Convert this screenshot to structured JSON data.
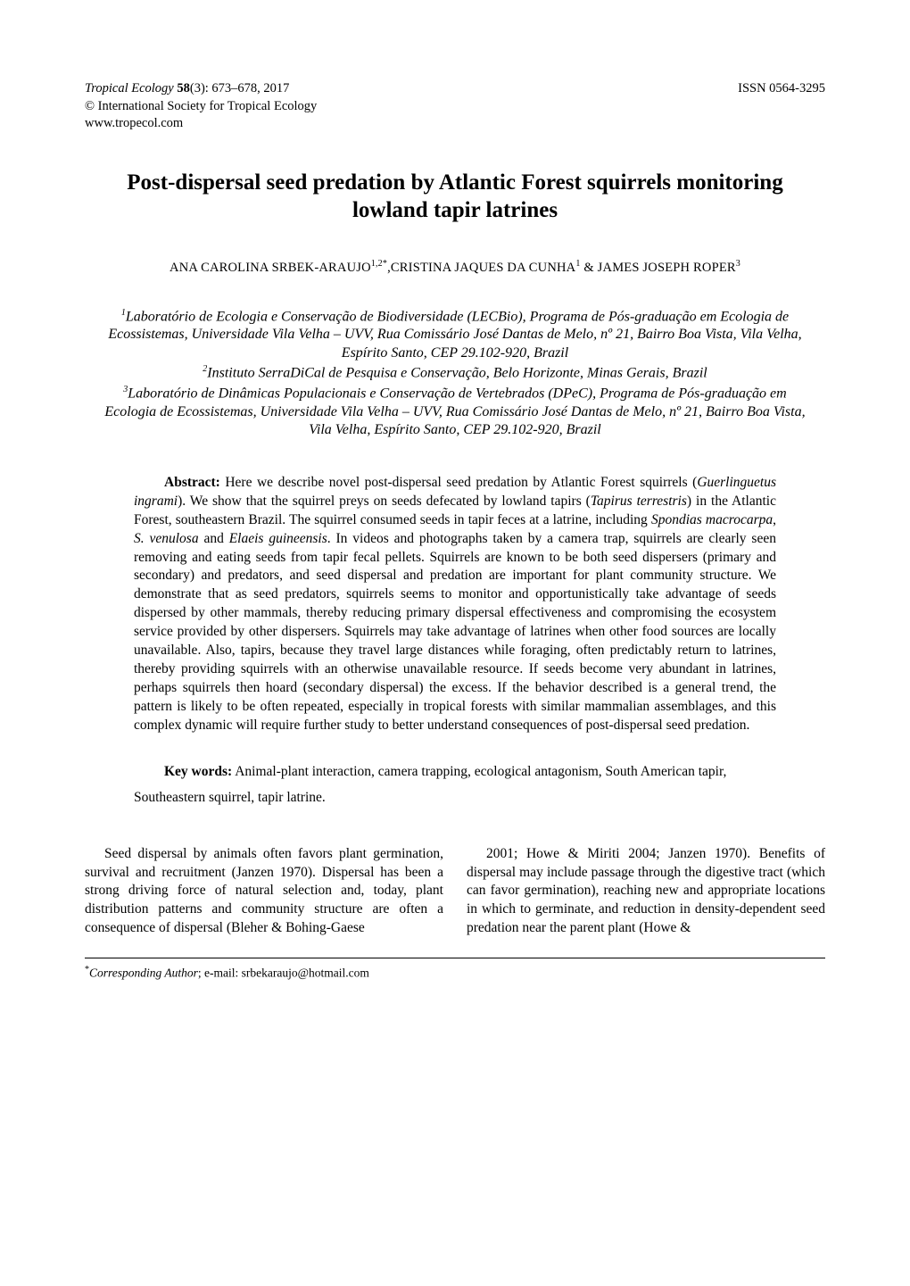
{
  "header": {
    "journal_name": "Tropical Ecology",
    "volume_issue": "58",
    "issue_pages": "(3): 673–678, 2017",
    "copyright": "© International Society for Tropical Ecology",
    "website": "www.tropecol.com",
    "issn": "ISSN 0564-3295"
  },
  "title": "Post-dispersal seed predation by Atlantic Forest squirrels monitoring lowland tapir latrines",
  "authors": "ANA CAROLINA SRBEK-ARAUJO",
  "authors_sup1": "1,2*",
  "authors_mid": ",CRISTINA JAQUES DA CUNHA",
  "authors_sup2": "1",
  "authors_mid2": " & JAMES JOSEPH ROPER",
  "authors_sup3": "3",
  "affiliations": {
    "a1_sup": "1",
    "a1": "Laboratório de Ecologia e Conservação de Biodiversidade (LECBio), Programa de Pós-graduação em Ecologia de Ecossistemas, Universidade Vila Velha – UVV, Rua Comissário José Dantas de Melo, nº 21, Bairro Boa Vista, Vila Velha, Espírito Santo, CEP 29.102-920, Brazil",
    "a2_sup": "2",
    "a2": "Instituto SerraDiCal de Pesquisa e Conservação, Belo Horizonte, Minas Gerais, Brazil",
    "a3_sup": "3",
    "a3": "Laboratório de Dinâmicas Populacionais e Conservação de Vertebrados (DPeC), Programa de Pós-graduação em Ecologia de Ecossistemas, Universidade Vila Velha – UVV, Rua Comissário José Dantas de Melo, nº 21, Bairro Boa Vista, Vila Velha, Espírito Santo, CEP 29.102-920, Brazil"
  },
  "abstract": {
    "label": "Abstract: ",
    "text_a": "Here we describe novel post-dispersal seed predation by Atlantic Forest squirrels (",
    "sp1": "Guerlinguetus ingrami",
    "text_b": "). We show that the squirrel preys on seeds defecated by lowland tapirs (",
    "sp2": "Tapirus terrestris",
    "text_c": ") in the Atlantic Forest, southeastern Brazil. The squirrel consumed seeds in tapir feces at a latrine, including ",
    "sp3": "Spondias macrocarpa",
    "text_d": ", ",
    "sp4": "S. venulosa",
    "text_e": " and ",
    "sp5": "Elaeis guineensis",
    "text_f": ". In videos and photographs taken by a camera trap, squirrels are clearly seen removing and eating seeds from tapir fecal pellets. Squirrels are known to be both seed dispersers (primary and secondary) and predators, and seed dispersal and predation are important for plant community structure. We demonstrate that as seed predators, squirrels seems to monitor and opportunistically take advantage of seeds dispersed by other mammals, thereby reducing primary dispersal effectiveness and compromising the ecosystem service provided by other dispersers. Squirrels may take advantage of latrines when other food sources are locally unavailable. Also, tapirs, because they travel large distances while foraging, often predictably return to latrines, thereby providing squirrels with an otherwise unavailable resource. If seeds become very abundant in latrines, perhaps squirrels then hoard (secondary dispersal) the excess. If the behavior described is a general trend, the pattern is likely to be often repeated, especially in tropical forests with similar mammalian assemblages, and this complex dynamic will require further study to better understand consequences of post-dispersal seed predation."
  },
  "keywords": {
    "label": "Key words:",
    "text": " Animal-plant interaction, camera trapping, ecological antagonism, South American tapir, Southeastern squirrel, tapir latrine."
  },
  "body": {
    "col1": "Seed dispersal by animals often favors plant germination, survival and recruitment (Janzen 1970). Dispersal has been a strong driving force of natural selection and, today, plant distribution patterns and community structure are often a consequence of dispersal (Bleher & Bohing-Gaese",
    "col2": "2001; Howe & Miriti 2004; Janzen 1970). Benefits of dispersal may include passage through the digestive tract (which can favor germination), reaching new and appropriate locations in which to germinate, and reduction in density-dependent seed predation near the parent plant (Howe &"
  },
  "corresponding": {
    "label": "Corresponding Author",
    "text": "; e-mail: srbekaraujo@hotmail.com"
  }
}
